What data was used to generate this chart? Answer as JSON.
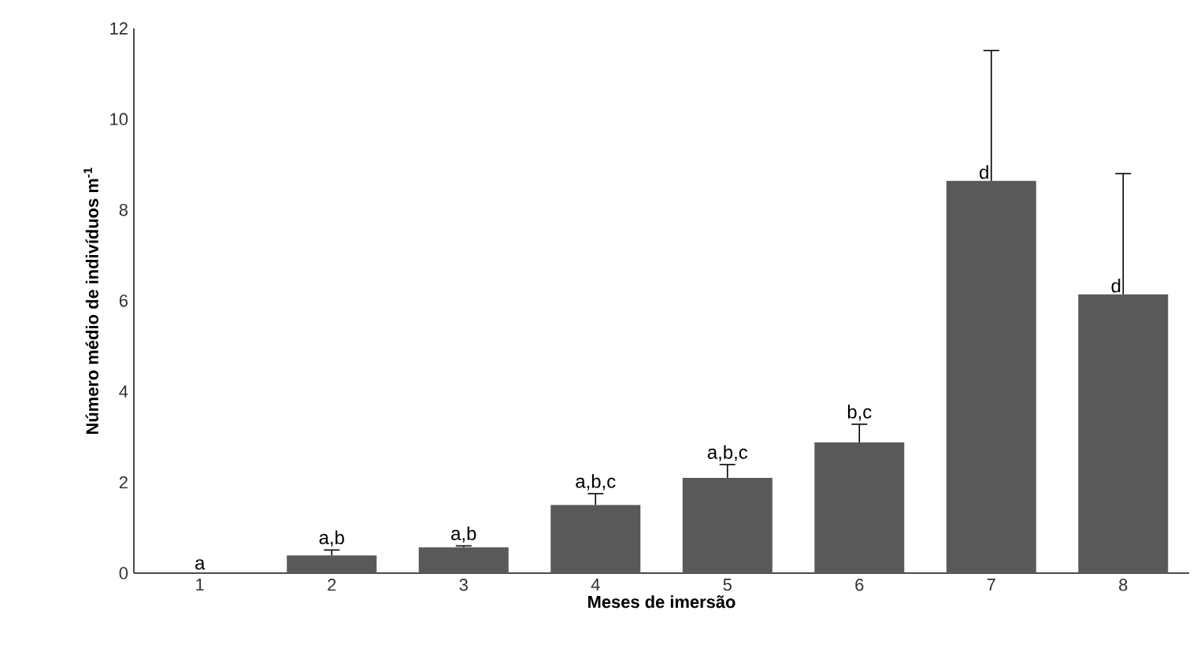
{
  "chart_data": {
    "type": "bar",
    "xlabel": "Meses de imersão",
    "ylabel": "Número médio de indivíduos  m$^{-1}$",
    "categories": [
      "1",
      "2",
      "3",
      "4",
      "5",
      "6",
      "7",
      "8"
    ],
    "values": [
      0,
      0.39,
      0.57,
      1.5,
      2.1,
      2.88,
      8.64,
      6.14
    ],
    "errors": [
      null,
      [
        0.39,
        0.51
      ],
      [
        0.57,
        0.6
      ],
      [
        1.5,
        1.75
      ],
      [
        2.1,
        2.39
      ],
      [
        2.88,
        3.28
      ],
      [
        8.64,
        11.51
      ],
      [
        6.14,
        8.8
      ]
    ],
    "color": "#595959",
    "ylim": [
      0,
      12
    ],
    "yticks": [
      0,
      2,
      4,
      6,
      8,
      10,
      12
    ],
    "annotations": [
      {
        "text": "a",
        "x": "1",
        "y": 0
      },
      {
        "text": "a,b",
        "x": "2",
        "y": 0.51
      },
      {
        "text": "a,b",
        "x": "3",
        "y": 0.6
      },
      {
        "text": "a,b,c",
        "x": "4",
        "y": 1.75
      },
      {
        "text": "a,b,c",
        "x": "5",
        "y": 2.39
      },
      {
        "text": "b,c",
        "x": "6",
        "y": 3.28
      },
      {
        "text": "d",
        "x": "7",
        "y": 8.64
      },
      {
        "text": "d",
        "x": "8",
        "y": 6.14
      }
    ]
  }
}
